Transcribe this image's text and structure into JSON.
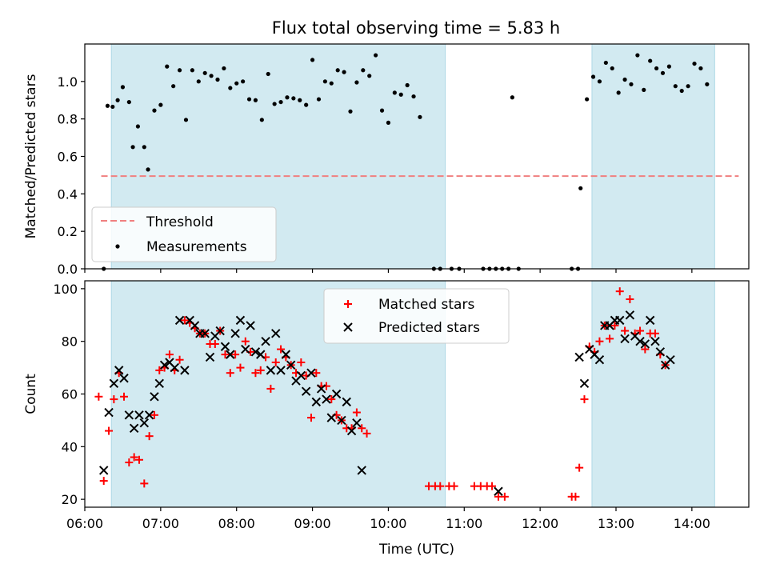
{
  "title": "Flux total observing time = 5.83 h",
  "colors": {
    "shade": "#add8e6",
    "threshold": "#f08080",
    "measurements": "#000000",
    "matched": "#ff0000",
    "predicted": "#000000"
  },
  "chart_data": [
    {
      "type": "scatter",
      "ylabel": "Matched/Predicted stars",
      "xlabel": "",
      "xlim": [
        "06:00",
        "14:45"
      ],
      "ylim": [
        0,
        1.2
      ],
      "yticks": [
        "0.0",
        "0.2",
        "0.4",
        "0.6",
        "0.8",
        "1.0"
      ],
      "threshold": {
        "name": "Threshold",
        "value": 0.495,
        "x_range": [
          "06:13",
          "14:37"
        ]
      },
      "shaded_intervals": [
        [
          "06:21",
          "10:45"
        ],
        [
          "12:41",
          "14:18"
        ]
      ],
      "legend": {
        "location": "lower-left",
        "entries": [
          "Threshold",
          "Measurements"
        ]
      },
      "series": [
        {
          "name": "Measurements",
          "marker": "dot",
          "points": [
            [
              "06:15",
              0.0
            ],
            [
              "06:18",
              0.87
            ],
            [
              "06:22",
              0.865
            ],
            [
              "06:26",
              0.9
            ],
            [
              "06:30",
              0.97
            ],
            [
              "06:35",
              0.89
            ],
            [
              "06:38",
              0.65
            ],
            [
              "06:42",
              0.76
            ],
            [
              "06:47",
              0.65
            ],
            [
              "06:50",
              0.53
            ],
            [
              "06:55",
              0.845
            ],
            [
              "07:00",
              0.875
            ],
            [
              "07:05",
              1.08
            ],
            [
              "07:10",
              0.975
            ],
            [
              "07:15",
              1.06
            ],
            [
              "07:20",
              0.795
            ],
            [
              "07:25",
              1.06
            ],
            [
              "07:30",
              1.0
            ],
            [
              "07:35",
              1.045
            ],
            [
              "07:40",
              1.03
            ],
            [
              "07:45",
              1.01
            ],
            [
              "07:50",
              1.07
            ],
            [
              "07:55",
              0.965
            ],
            [
              "08:00",
              0.99
            ],
            [
              "08:05",
              1.0
            ],
            [
              "08:10",
              0.905
            ],
            [
              "08:15",
              0.9
            ],
            [
              "08:20",
              0.795
            ],
            [
              "08:25",
              1.04
            ],
            [
              "08:30",
              0.88
            ],
            [
              "08:35",
              0.89
            ],
            [
              "08:40",
              0.915
            ],
            [
              "08:45",
              0.91
            ],
            [
              "08:50",
              0.9
            ],
            [
              "08:55",
              0.875
            ],
            [
              "09:00",
              1.115
            ],
            [
              "09:05",
              0.905
            ],
            [
              "09:10",
              1.0
            ],
            [
              "09:15",
              0.99
            ],
            [
              "09:20",
              1.06
            ],
            [
              "09:25",
              1.05
            ],
            [
              "09:30",
              0.84
            ],
            [
              "09:35",
              0.995
            ],
            [
              "09:40",
              1.06
            ],
            [
              "09:45",
              1.03
            ],
            [
              "09:50",
              1.14
            ],
            [
              "09:55",
              0.845
            ],
            [
              "10:00",
              0.78
            ],
            [
              "10:05",
              0.94
            ],
            [
              "10:10",
              0.93
            ],
            [
              "10:15",
              0.98
            ],
            [
              "10:20",
              0.92
            ],
            [
              "10:25",
              0.81
            ],
            [
              "10:36",
              0.0
            ],
            [
              "10:41",
              0.0
            ],
            [
              "10:50",
              0.0
            ],
            [
              "10:56",
              0.0
            ],
            [
              "11:15",
              0.0
            ],
            [
              "11:20",
              0.0
            ],
            [
              "11:25",
              0.0
            ],
            [
              "11:30",
              0.0
            ],
            [
              "11:35",
              0.0
            ],
            [
              "11:38",
              0.915
            ],
            [
              "11:43",
              0.0
            ],
            [
              "12:25",
              0.0
            ],
            [
              "12:30",
              0.0
            ],
            [
              "12:32",
              0.43
            ],
            [
              "12:37",
              0.905
            ],
            [
              "12:42",
              1.025
            ],
            [
              "12:47",
              1.0
            ],
            [
              "12:52",
              1.1
            ],
            [
              "12:57",
              1.07
            ],
            [
              "13:02",
              0.94
            ],
            [
              "13:07",
              1.01
            ],
            [
              "13:12",
              0.985
            ],
            [
              "13:17",
              1.14
            ],
            [
              "13:22",
              0.955
            ],
            [
              "13:27",
              1.11
            ],
            [
              "13:32",
              1.07
            ],
            [
              "13:37",
              1.045
            ],
            [
              "13:42",
              1.08
            ],
            [
              "13:47",
              0.975
            ],
            [
              "13:52",
              0.95
            ],
            [
              "13:57",
              0.975
            ],
            [
              "14:02",
              1.095
            ],
            [
              "14:07",
              1.07
            ],
            [
              "14:12",
              0.985
            ]
          ]
        }
      ]
    },
    {
      "type": "scatter",
      "ylabel": "Count",
      "xlabel": "Time (UTC)",
      "xlim": [
        "06:00",
        "14:45"
      ],
      "ylim": [
        17,
        103
      ],
      "yticks": [
        "20",
        "40",
        "60",
        "80",
        "100"
      ],
      "xticks": [
        "06:00",
        "07:00",
        "08:00",
        "09:00",
        "10:00",
        "11:00",
        "12:00",
        "13:00",
        "14:00"
      ],
      "shaded_intervals": [
        [
          "06:21",
          "10:45"
        ],
        [
          "12:41",
          "14:18"
        ]
      ],
      "legend": {
        "location": "upper-center",
        "entries": [
          "Matched stars",
          "Predicted stars"
        ]
      },
      "series": [
        {
          "name": "Matched stars",
          "marker": "plus",
          "points": [
            [
              "06:11",
              59
            ],
            [
              "06:15",
              27
            ],
            [
              "06:19",
              46
            ],
            [
              "06:23",
              58
            ],
            [
              "06:27",
              68
            ],
            [
              "06:31",
              59
            ],
            [
              "06:35",
              34
            ],
            [
              "06:39",
              36
            ],
            [
              "06:43",
              35
            ],
            [
              "06:47",
              26
            ],
            [
              "06:51",
              44
            ],
            [
              "06:55",
              52
            ],
            [
              "06:59",
              69
            ],
            [
              "07:03",
              70
            ],
            [
              "07:07",
              75
            ],
            [
              "07:11",
              69
            ],
            [
              "07:15",
              73
            ],
            [
              "07:19",
              88
            ],
            [
              "07:23",
              87
            ],
            [
              "07:27",
              85
            ],
            [
              "07:31",
              83
            ],
            [
              "07:35",
              83
            ],
            [
              "07:39",
              79
            ],
            [
              "07:43",
              79
            ],
            [
              "07:47",
              84
            ],
            [
              "07:51",
              75
            ],
            [
              "07:55",
              68
            ],
            [
              "07:59",
              75
            ],
            [
              "08:03",
              70
            ],
            [
              "08:07",
              80
            ],
            [
              "08:11",
              76
            ],
            [
              "08:15",
              68
            ],
            [
              "08:19",
              69
            ],
            [
              "08:23",
              74
            ],
            [
              "08:27",
              62
            ],
            [
              "08:31",
              72
            ],
            [
              "08:35",
              77
            ],
            [
              "08:39",
              74
            ],
            [
              "08:43",
              71
            ],
            [
              "08:47",
              68
            ],
            [
              "08:51",
              72
            ],
            [
              "08:55",
              67
            ],
            [
              "08:59",
              51
            ],
            [
              "09:03",
              68
            ],
            [
              "09:07",
              63
            ],
            [
              "09:11",
              63
            ],
            [
              "09:15",
              58
            ],
            [
              "09:19",
              52
            ],
            [
              "09:23",
              50
            ],
            [
              "09:27",
              47
            ],
            [
              "09:31",
              47
            ],
            [
              "09:35",
              53
            ],
            [
              "09:39",
              47
            ],
            [
              "09:43",
              45
            ],
            [
              "10:32",
              25
            ],
            [
              "10:37",
              25
            ],
            [
              "10:41",
              25
            ],
            [
              "10:48",
              25
            ],
            [
              "10:52",
              25
            ],
            [
              "11:08",
              25
            ],
            [
              "11:13",
              25
            ],
            [
              "11:18",
              25
            ],
            [
              "11:22",
              25
            ],
            [
              "11:27",
              21
            ],
            [
              "11:32",
              21
            ],
            [
              "12:25",
              21
            ],
            [
              "12:28",
              21
            ],
            [
              "12:31",
              32
            ],
            [
              "12:35",
              58
            ],
            [
              "12:39",
              78
            ],
            [
              "12:43",
              76
            ],
            [
              "12:47",
              80
            ],
            [
              "12:51",
              86
            ],
            [
              "12:55",
              81
            ],
            [
              "12:59",
              86
            ],
            [
              "13:03",
              99
            ],
            [
              "13:07",
              84
            ],
            [
              "13:11",
              96
            ],
            [
              "13:15",
              83
            ],
            [
              "13:19",
              84
            ],
            [
              "13:23",
              77
            ],
            [
              "13:27",
              83
            ],
            [
              "13:31",
              83
            ],
            [
              "13:35",
              75
            ],
            [
              "13:39",
              71
            ]
          ]
        },
        {
          "name": "Predicted stars",
          "marker": "x",
          "points": [
            [
              "06:15",
              31
            ],
            [
              "06:19",
              53
            ],
            [
              "06:23",
              64
            ],
            [
              "06:27",
              69
            ],
            [
              "06:31",
              66
            ],
            [
              "06:35",
              52
            ],
            [
              "06:39",
              47
            ],
            [
              "06:43",
              52
            ],
            [
              "06:47",
              49
            ],
            [
              "06:51",
              52
            ],
            [
              "06:55",
              59
            ],
            [
              "06:59",
              64
            ],
            [
              "07:03",
              71
            ],
            [
              "07:07",
              72
            ],
            [
              "07:11",
              70
            ],
            [
              "07:15",
              88
            ],
            [
              "07:19",
              69
            ],
            [
              "07:23",
              88
            ],
            [
              "07:27",
              86
            ],
            [
              "07:31",
              83
            ],
            [
              "07:35",
              83
            ],
            [
              "07:39",
              74
            ],
            [
              "07:43",
              82
            ],
            [
              "07:47",
              84
            ],
            [
              "07:51",
              78
            ],
            [
              "07:55",
              75
            ],
            [
              "07:59",
              83
            ],
            [
              "08:03",
              88
            ],
            [
              "08:07",
              77
            ],
            [
              "08:11",
              86
            ],
            [
              "08:15",
              76
            ],
            [
              "08:19",
              75
            ],
            [
              "08:23",
              80
            ],
            [
              "08:27",
              69
            ],
            [
              "08:31",
              83
            ],
            [
              "08:35",
              69
            ],
            [
              "08:39",
              75
            ],
            [
              "08:43",
              71
            ],
            [
              "08:47",
              65
            ],
            [
              "08:51",
              67
            ],
            [
              "08:55",
              61
            ],
            [
              "08:59",
              68
            ],
            [
              "09:03",
              57
            ],
            [
              "09:07",
              62
            ],
            [
              "09:11",
              58
            ],
            [
              "09:15",
              51
            ],
            [
              "09:19",
              60
            ],
            [
              "09:23",
              50
            ],
            [
              "09:27",
              57
            ],
            [
              "09:31",
              46
            ],
            [
              "09:35",
              49
            ],
            [
              "09:39",
              31
            ],
            [
              "11:27",
              23
            ],
            [
              "12:31",
              74
            ],
            [
              "12:35",
              64
            ],
            [
              "12:39",
              77
            ],
            [
              "12:43",
              75
            ],
            [
              "12:47",
              73
            ],
            [
              "12:51",
              86
            ],
            [
              "12:55",
              86
            ],
            [
              "12:59",
              88
            ],
            [
              "13:03",
              88
            ],
            [
              "13:07",
              81
            ],
            [
              "13:11",
              90
            ],
            [
              "13:15",
              82
            ],
            [
              "13:19",
              80
            ],
            [
              "13:23",
              79
            ],
            [
              "13:27",
              88
            ],
            [
              "13:31",
              80
            ],
            [
              "13:35",
              76
            ],
            [
              "13:39",
              71
            ],
            [
              "13:43",
              73
            ]
          ]
        }
      ]
    }
  ]
}
